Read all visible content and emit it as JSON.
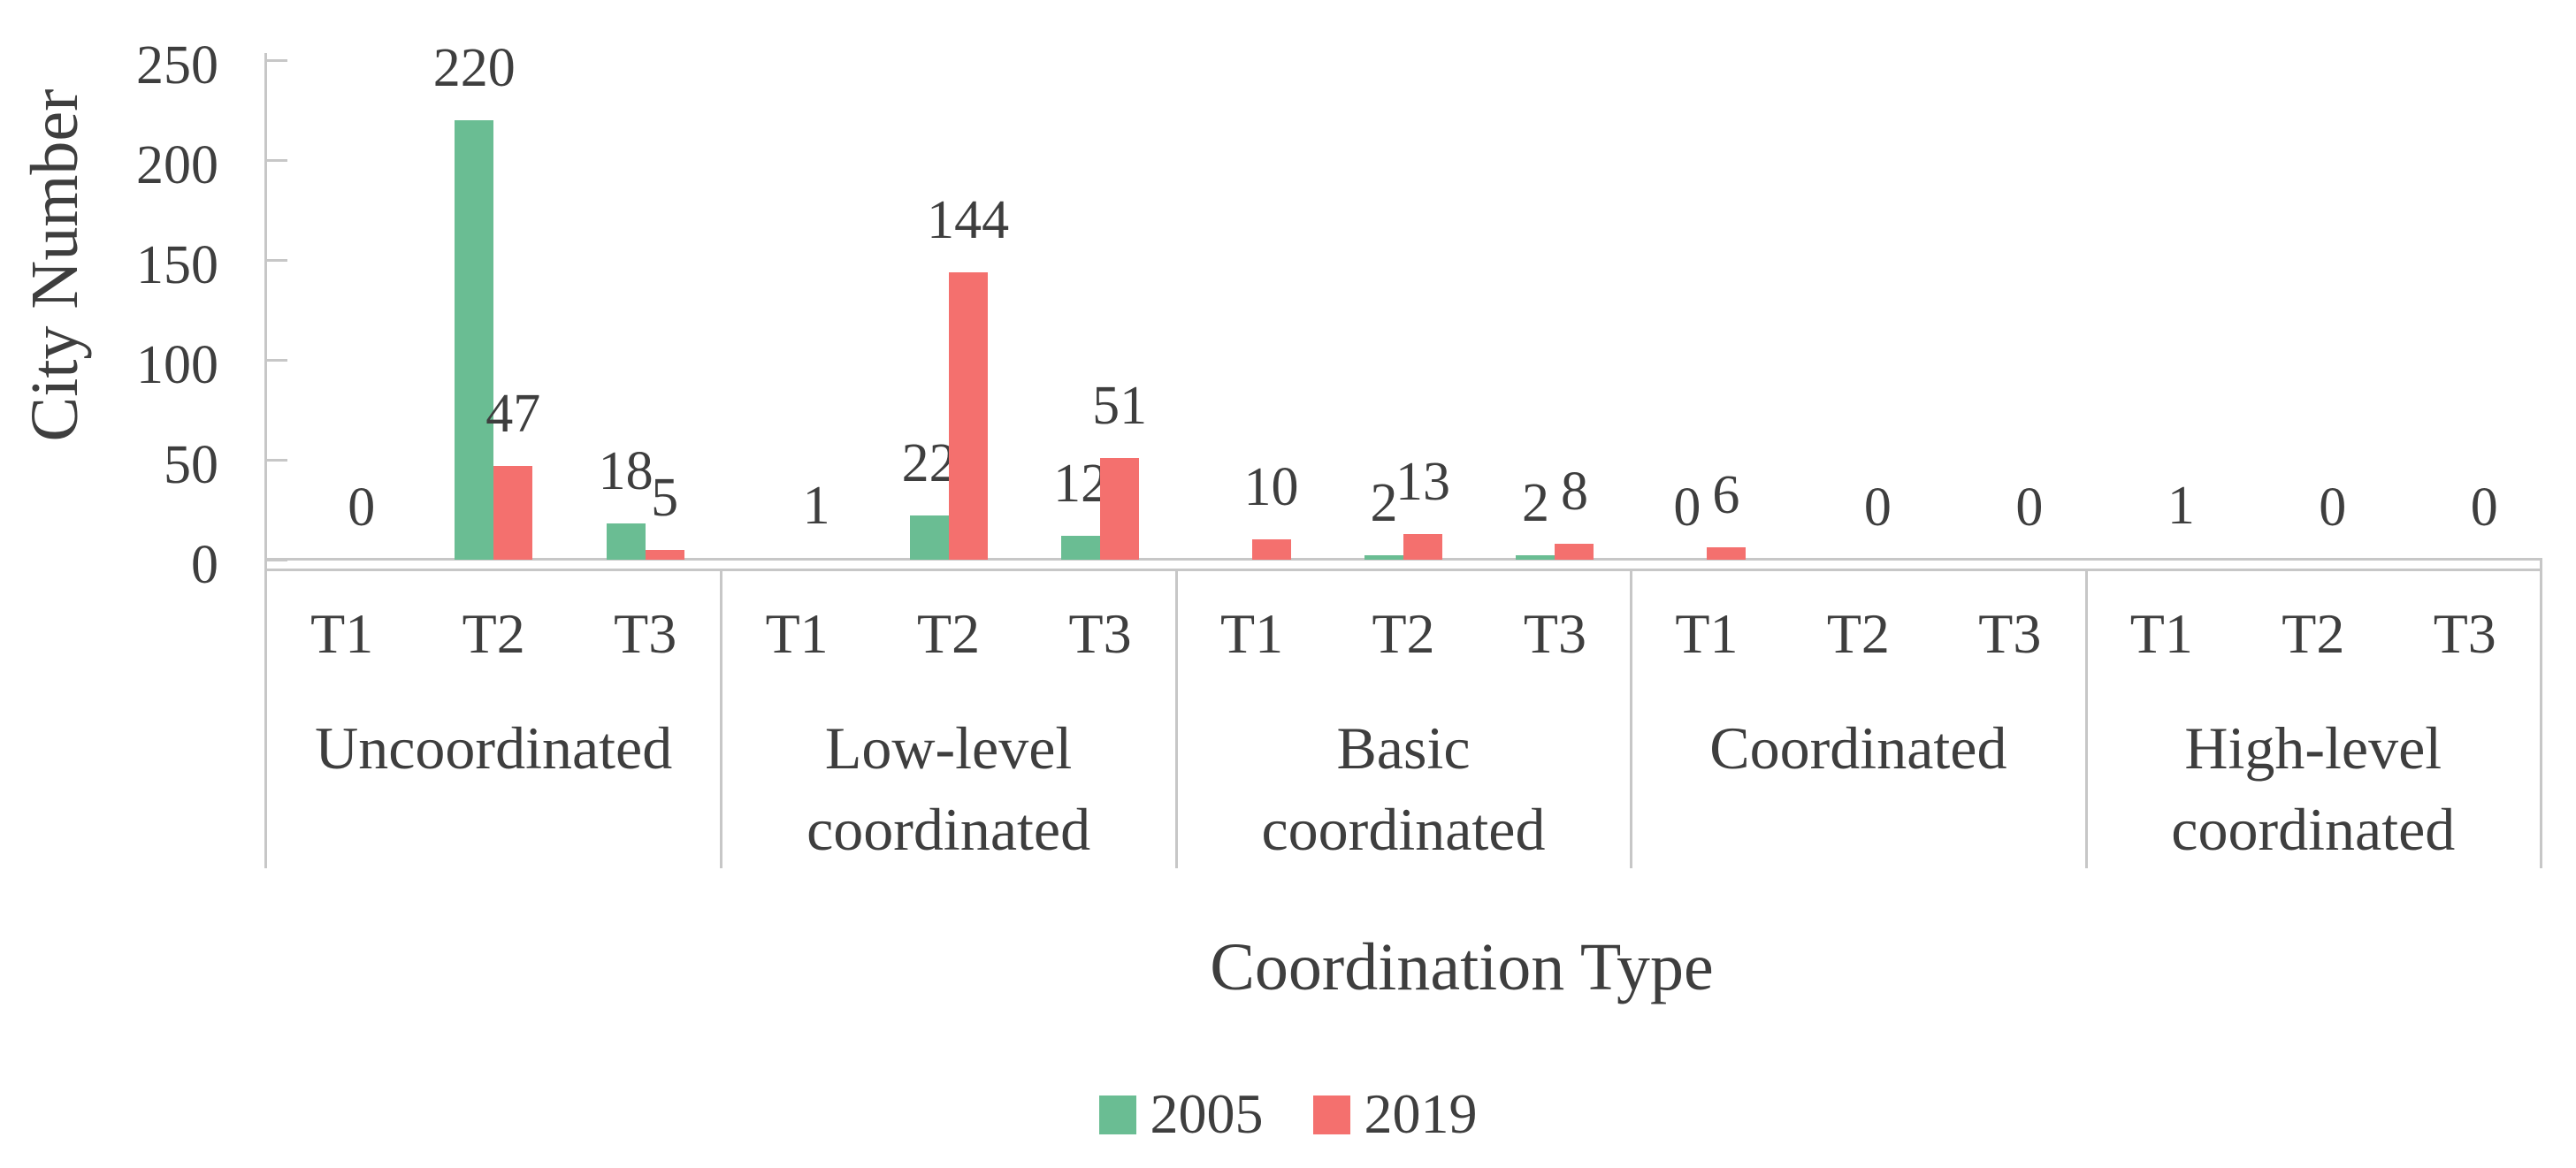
{
  "figure": {
    "background": "#FFFFFF",
    "text_color": "#3E3E3E",
    "line_color": "#C7C7C7"
  },
  "chart_data": {
    "type": "bar",
    "title": "",
    "xlabel": "Coordination Type",
    "ylabel": "City Number",
    "ylim": [
      0,
      250
    ],
    "yticks": [
      0,
      50,
      100,
      150,
      200,
      250
    ],
    "grid": false,
    "legend_position": "bottom",
    "groups": [
      {
        "name": "Uncoordinated",
        "label_lines": [
          "Uncoordinated"
        ]
      },
      {
        "name": "Low-level coordinated",
        "label_lines": [
          "Low-level",
          "coordinated"
        ]
      },
      {
        "name": "Basic coordinated",
        "label_lines": [
          "Basic",
          "coordinated"
        ]
      },
      {
        "name": "Coordinated",
        "label_lines": [
          "Coordinated"
        ]
      },
      {
        "name": "High-level coordinated",
        "label_lines": [
          "High-level",
          "coordinated"
        ]
      }
    ],
    "subcategories": [
      "T1",
      "T2",
      "T3"
    ],
    "series": [
      {
        "name": "2005",
        "color": "#6ABD93",
        "values": [
          [
            null,
            220,
            18
          ],
          [
            null,
            22,
            12
          ],
          [
            null,
            2,
            2
          ],
          [
            0,
            null,
            null
          ],
          [
            null,
            null,
            null
          ]
        ]
      },
      {
        "name": "2019",
        "color": "#F4706E",
        "values": [
          [
            0,
            47,
            5
          ],
          [
            1,
            144,
            51
          ],
          [
            10,
            13,
            8
          ],
          [
            6,
            0,
            0
          ],
          [
            1,
            0,
            0
          ]
        ]
      }
    ]
  },
  "legend": {
    "items": [
      {
        "label": "2005",
        "color": "#6ABD93"
      },
      {
        "label": "2019",
        "color": "#F4706E"
      }
    ]
  }
}
